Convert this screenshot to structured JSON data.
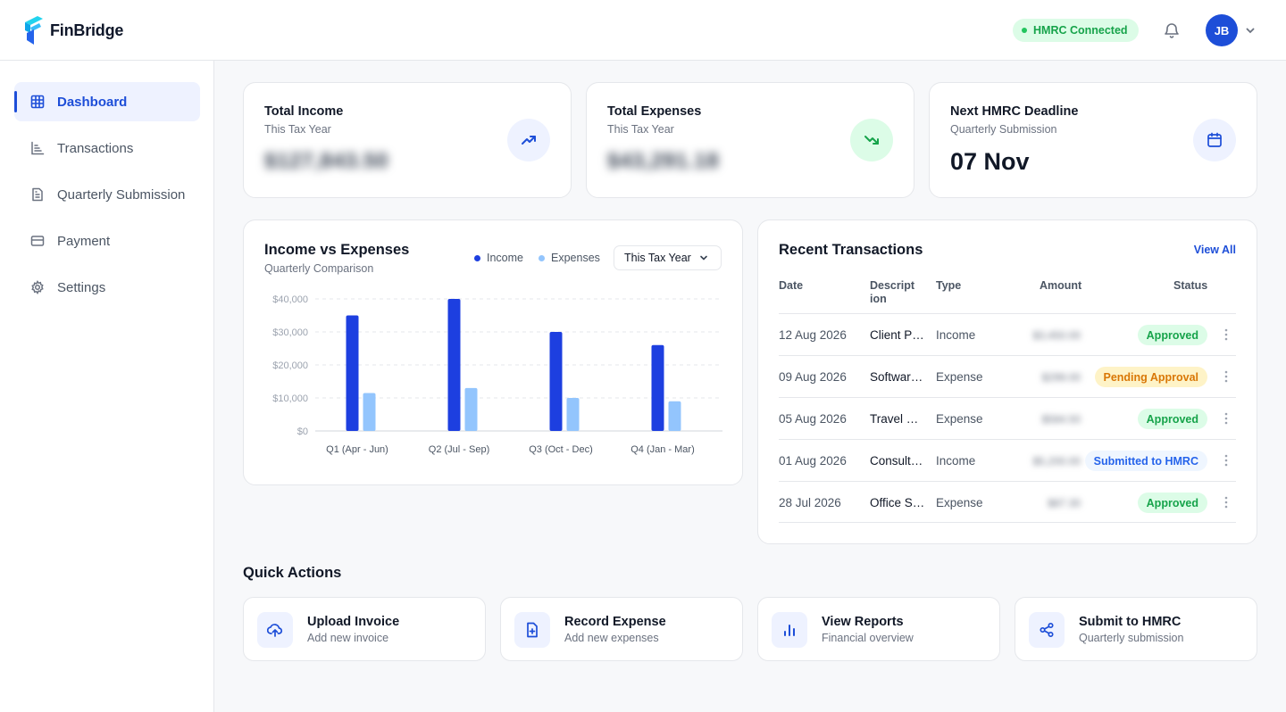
{
  "app": {
    "name": "FinBridge"
  },
  "header": {
    "connection_status": "HMRC Connected",
    "user_initials": "JB",
    "notifications_icon": "bell-icon"
  },
  "sidebar": {
    "items": [
      {
        "label": "Dashboard",
        "icon": "grid-icon",
        "active": true
      },
      {
        "label": "Transactions",
        "icon": "chart-icon",
        "active": false
      },
      {
        "label": "Quarterly Submission",
        "icon": "document-icon",
        "active": false
      },
      {
        "label": "Payment",
        "icon": "card-icon",
        "active": false
      },
      {
        "label": "Settings",
        "icon": "gear-icon",
        "active": false
      }
    ]
  },
  "stats": {
    "income": {
      "title": "Total Income",
      "subtitle": "This Tax Year",
      "value": "$127,843.50",
      "icon": "trending-up-icon"
    },
    "expenses": {
      "title": "Total Expenses",
      "subtitle": "This Tax Year",
      "value": "$43,291.18",
      "icon": "trending-down-icon"
    },
    "deadline": {
      "title": "Next HMRC Deadline",
      "subtitle": "Quarterly Submission",
      "value": "07 Nov",
      "icon": "calendar-icon"
    }
  },
  "income_chart": {
    "title": "Income vs Expenses",
    "subtitle": "Quarterly Comparison",
    "period_label": "This Tax Year"
  },
  "chart_data": {
    "type": "bar",
    "title": "Income vs Expenses",
    "subtitle": "Quarterly Comparison",
    "categories": [
      "Q1 (Apr - Jun)",
      "Q2 (Jul - Sep)",
      "Q3 (Oct - Dec)",
      "Q4 (Jan - Mar)"
    ],
    "series": [
      {
        "name": "Income",
        "values": [
          35000,
          40000,
          30000,
          26000
        ],
        "color": "#1d3fe0"
      },
      {
        "name": "Expenses",
        "values": [
          11500,
          13000,
          10000,
          9000
        ],
        "color": "#93c5fd"
      }
    ],
    "y_ticks": [
      "$0",
      "$10,000",
      "$20,000",
      "$30,000",
      "$40,000"
    ],
    "ylim": [
      0,
      40000
    ],
    "grid": true,
    "legend_position": "top-right"
  },
  "transactions": {
    "title": "Recent Transactions",
    "view_all": "View All",
    "columns": {
      "date": "Date",
      "description": "Descript ion",
      "type": "Type",
      "amount": "Amount",
      "status": "Status"
    },
    "rows": [
      {
        "date": "12 Aug 2026",
        "description": "Client Payment",
        "type": "Income",
        "amount": "$3,450.00",
        "status": "Approved",
        "status_kind": "approved"
      },
      {
        "date": "09 Aug 2026",
        "description": "Software Subscription",
        "type": "Expense",
        "amount": "$299.00",
        "status": "Pending Approval",
        "status_kind": "pending"
      },
      {
        "date": "05 Aug 2026",
        "description": "Travel Expenses",
        "type": "Expense",
        "amount": "$584.50",
        "status": "Approved",
        "status_kind": "approved"
      },
      {
        "date": "01 Aug 2026",
        "description": "Consulting Fee",
        "type": "Income",
        "amount": "$5,200.00",
        "status": "Submitted to HMRC",
        "status_kind": "submitted"
      },
      {
        "date": "28 Jul 2026",
        "description": "Office Supplies",
        "type": "Expense",
        "amount": "$87.30",
        "status": "Approved",
        "status_kind": "approved"
      }
    ]
  },
  "quick_actions": {
    "title": "Quick Actions",
    "items": [
      {
        "title": "Upload Invoice",
        "subtitle": "Add new invoice",
        "icon": "upload-cloud-icon"
      },
      {
        "title": "Record Expense",
        "subtitle": "Add new expenses",
        "icon": "file-plus-icon"
      },
      {
        "title": "View Reports",
        "subtitle": "Financial overview",
        "icon": "bar-chart-icon"
      },
      {
        "title": "Submit to HMRC",
        "subtitle": "Quarterly submission",
        "icon": "share-icon"
      }
    ]
  },
  "colors": {
    "accent": "#1d4ed8",
    "success": "#16a34a",
    "warning": "#d97706"
  }
}
